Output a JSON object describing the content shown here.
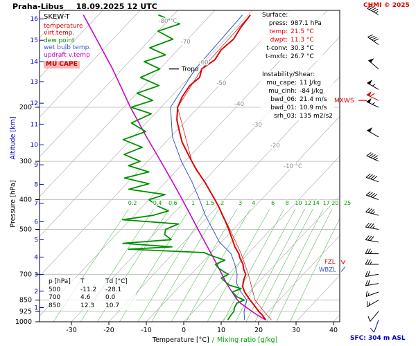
{
  "header": {
    "station": "Praha-Libus",
    "datetime": "18.09.2025 12 UTC",
    "copyright": "CHMI © 2025"
  },
  "legend": {
    "title": "SKEW-T",
    "items": [
      {
        "label": "temperature",
        "color": "#e00000"
      },
      {
        "label": "virt.temp.",
        "color": "#e00000"
      },
      {
        "label": "dew point",
        "color": "#009000"
      },
      {
        "label": "wet bulb temp.",
        "color": "#3355cc"
      },
      {
        "label": "updraft v.temp",
        "color": "#cc00cc"
      },
      {
        "label": "MU CAPE",
        "color": "#cc0000",
        "bg": "#f6b9b9"
      }
    ]
  },
  "surface_panel": {
    "title": "Surface:",
    "rows": [
      {
        "label": "press:",
        "value": "987.1 hPa"
      },
      {
        "label": "temp:",
        "value": "21.5 °C",
        "color": "#e00000"
      },
      {
        "label": "dwpt:",
        "value": "11.3 °C",
        "color": "#e00000"
      },
      {
        "label": "t-conv:",
        "value": "30.3 °C"
      },
      {
        "label": "t-mxfc:",
        "value": "26.7 °C"
      }
    ]
  },
  "instability_panel": {
    "title": "Instability/Shear:",
    "rows": [
      {
        "label": "mu_cape:",
        "value": "11 J/kg"
      },
      {
        "label": "mu_cinh:",
        "value": "-84 J/kg"
      },
      {
        "label": "bwd_06:",
        "value": "21.4 m/s"
      },
      {
        "label": "bwd_01:",
        "value": "10.9 m/s"
      },
      {
        "label": "srh_03:",
        "value": "135 m2/s2"
      }
    ]
  },
  "markers": {
    "tropo": "Tropo",
    "mxws": "MXWS",
    "fzl": "FZL",
    "wbzl": "WBZL",
    "sfc": "SFC: 304 m ASL"
  },
  "axes": {
    "left_primary": "Pressure [hPa]",
    "left_secondary": "Altitude [km]",
    "bottom_primary": "Temperature [°C]",
    "bottom_separator": "/",
    "bottom_secondary": "Mixing ratio [g/kg]"
  },
  "table": {
    "headers": [
      "p [hPa]",
      "T",
      "Td [°C]"
    ],
    "rows": [
      [
        "500",
        "-11.2",
        "-28.1"
      ],
      [
        "700",
        "4.6",
        "0.0"
      ],
      [
        "850",
        "12.3",
        "10.7"
      ]
    ]
  },
  "chart_data": {
    "type": "skew-t log-p sounding",
    "title": "Praha-Libus 18.09.2025 12 UTC",
    "colors": {
      "temperature": "#e00000",
      "dewpoint": "#009000",
      "wetbulb": "#3355cc",
      "virt_temp": "#dd2222",
      "parcel": "#cc00cc",
      "mixing_ratio": "#00a000",
      "grid": "#b4b4b4",
      "isotherm_label": "#8a8a8a",
      "altitude": "#0000cc",
      "wind": "#000000",
      "mxws": "#e00000",
      "surface_wind": "#0000cc",
      "brand": "#e00000"
    },
    "pressure_ticks": [
      200,
      300,
      400,
      500,
      700,
      850,
      925,
      1000
    ],
    "altitude_ticks": [
      {
        "km": 1,
        "p": 899
      },
      {
        "km": 2,
        "p": 795
      },
      {
        "km": 3,
        "p": 701
      },
      {
        "km": 4,
        "p": 616
      },
      {
        "km": 5,
        "p": 540
      },
      {
        "km": 6,
        "p": 472
      },
      {
        "km": 7,
        "p": 411
      },
      {
        "km": 8,
        "p": 357
      },
      {
        "km": 9,
        "p": 308
      },
      {
        "km": 10,
        "p": 265
      },
      {
        "km": 11,
        "p": 227
      },
      {
        "km": 12,
        "p": 194
      },
      {
        "km": 13,
        "p": 165
      },
      {
        "km": 14,
        "p": 142
      },
      {
        "km": 15,
        "p": 121
      },
      {
        "km": 16,
        "p": 103
      }
    ],
    "temp_ticks": [
      -30,
      -20,
      -10,
      0,
      10,
      20,
      30,
      40
    ],
    "isotherm_label_values": [
      -80,
      -70,
      -60,
      -50,
      -40,
      -30,
      -20,
      -10
    ],
    "mixing_ratio_lines": [
      0.2,
      0.4,
      0.6,
      1,
      1.5,
      2,
      3,
      4,
      6,
      8,
      10,
      12,
      14,
      17,
      20,
      25
    ],
    "series": {
      "temperature": [
        [
          987,
          21.5
        ],
        [
          950,
          19.2
        ],
        [
          925,
          17.4
        ],
        [
          900,
          15.8
        ],
        [
          850,
          12.3
        ],
        [
          820,
          10.2
        ],
        [
          800,
          8.8
        ],
        [
          770,
          7.0
        ],
        [
          740,
          5.8
        ],
        [
          700,
          4.6
        ],
        [
          670,
          2.5
        ],
        [
          650,
          1.4
        ],
        [
          620,
          -1.0
        ],
        [
          600,
          -2.4
        ],
        [
          570,
          -5.2
        ],
        [
          550,
          -6.8
        ],
        [
          520,
          -9.4
        ],
        [
          500,
          -11.2
        ],
        [
          470,
          -14.2
        ],
        [
          450,
          -16.4
        ],
        [
          420,
          -19.8
        ],
        [
          400,
          -22.4
        ],
        [
          370,
          -26.6
        ],
        [
          350,
          -29.6
        ],
        [
          320,
          -34.8
        ],
        [
          300,
          -38.2
        ],
        [
          280,
          -41.8
        ],
        [
          260,
          -45.6
        ],
        [
          240,
          -49.0
        ],
        [
          220,
          -52.6
        ],
        [
          200,
          -55.6
        ],
        [
          185,
          -57.0
        ],
        [
          170,
          -57.8
        ],
        [
          160,
          -57.2
        ],
        [
          150,
          -58.8
        ],
        [
          140,
          -57.6
        ],
        [
          130,
          -58.4
        ],
        [
          120,
          -57.8
        ],
        [
          110,
          -58.8
        ],
        [
          100,
          -59.4
        ]
      ],
      "dewpoint": [
        [
          987,
          11.3
        ],
        [
          960,
          11.0
        ],
        [
          925,
          10.8
        ],
        [
          900,
          10.0
        ],
        [
          870,
          9.5
        ],
        [
          850,
          10.7
        ],
        [
          830,
          8.0
        ],
        [
          800,
          5.5
        ],
        [
          780,
          7.0
        ],
        [
          760,
          3.0
        ],
        [
          740,
          1.0
        ],
        [
          720,
          -1.0
        ],
        [
          700,
          0.0
        ],
        [
          690,
          -1.5
        ],
        [
          670,
          -4.0
        ],
        [
          650,
          -6.0
        ],
        [
          630,
          -4.5
        ],
        [
          610,
          -9.0
        ],
        [
          595,
          -12.0
        ],
        [
          580,
          -33.0
        ],
        [
          570,
          -22.0
        ],
        [
          555,
          -36.0
        ],
        [
          540,
          -24.0
        ],
        [
          520,
          -27.0
        ],
        [
          500,
          -28.1
        ],
        [
          480,
          -26.0
        ],
        [
          465,
          -42.0
        ],
        [
          450,
          -35.0
        ],
        [
          435,
          -32.0
        ],
        [
          420,
          -36.0
        ],
        [
          400,
          -40.0
        ],
        [
          385,
          -37.0
        ],
        [
          370,
          -48.0
        ],
        [
          355,
          -44.0
        ],
        [
          340,
          -52.0
        ],
        [
          325,
          -47.0
        ],
        [
          310,
          -54.0
        ],
        [
          300,
          -52.0
        ],
        [
          285,
          -58.0
        ],
        [
          270,
          -55.0
        ],
        [
          255,
          -62.0
        ],
        [
          240,
          -58.0
        ],
        [
          225,
          -64.0
        ],
        [
          210,
          -61.0
        ],
        [
          200,
          -68.0
        ],
        [
          190,
          -64.0
        ],
        [
          180,
          -70.0
        ],
        [
          170,
          -66.0
        ],
        [
          160,
          -73.0
        ],
        [
          150,
          -70.0
        ],
        [
          142,
          -76.0
        ],
        [
          135,
          -72.0
        ],
        [
          128,
          -78.0
        ],
        [
          120,
          -74.0
        ],
        [
          113,
          -80.0
        ],
        [
          107,
          -76.0
        ],
        [
          100,
          -84.0
        ]
      ],
      "wetbulb": [
        [
          987,
          15.8
        ],
        [
          925,
          13.5
        ],
        [
          850,
          11.4
        ],
        [
          800,
          7.8
        ],
        [
          750,
          4.5
        ],
        [
          700,
          2.3
        ],
        [
          650,
          -0.8
        ],
        [
          600,
          -4.5
        ],
        [
          550,
          -10.5
        ],
        [
          500,
          -15.5
        ],
        [
          450,
          -21.0
        ],
        [
          400,
          -26.5
        ],
        [
          350,
          -33.0
        ],
        [
          300,
          -41.0
        ],
        [
          250,
          -49.5
        ],
        [
          200,
          -57.5
        ],
        [
          150,
          -60.5
        ],
        [
          100,
          -61.5
        ]
      ],
      "virt_temp": [
        [
          987,
          23.0
        ],
        [
          925,
          18.8
        ],
        [
          850,
          13.6
        ],
        [
          700,
          5.3
        ],
        [
          600,
          -1.8
        ],
        [
          500,
          -10.9
        ],
        [
          400,
          -22.3
        ],
        [
          300,
          -38.2
        ],
        [
          200,
          -55.6
        ],
        [
          150,
          -58.8
        ],
        [
          100,
          -59.4
        ]
      ],
      "parcel": [
        [
          987,
          21.5
        ],
        [
          950,
          17.9
        ],
        [
          925,
          15.6
        ],
        [
          900,
          13.3
        ],
        [
          870,
          10.5
        ],
        [
          850,
          8.9
        ],
        [
          800,
          5.4
        ],
        [
          750,
          1.8
        ],
        [
          700,
          -1.8
        ],
        [
          650,
          -5.6
        ],
        [
          600,
          -9.8
        ],
        [
          550,
          -14.4
        ],
        [
          500,
          -19.4
        ],
        [
          450,
          -24.9
        ],
        [
          400,
          -31.1
        ],
        [
          350,
          -38.2
        ],
        [
          300,
          -46.5
        ],
        [
          250,
          -56.4
        ],
        [
          200,
          -68.2
        ],
        [
          150,
          -82.6
        ],
        [
          100,
          -104.0
        ]
      ]
    },
    "wind_barbs": [
      {
        "p": 100,
        "kt": 45,
        "dir": 300
      },
      {
        "p": 125,
        "kt": 40,
        "dir": 305
      },
      {
        "p": 150,
        "kt": 50,
        "dir": 310
      },
      {
        "p": 175,
        "kt": 55,
        "dir": 300
      },
      {
        "p": 190,
        "kt": 60,
        "dir": 295,
        "color": "mxws"
      },
      {
        "p": 200,
        "kt": 55,
        "dir": 295
      },
      {
        "p": 250,
        "kt": 50,
        "dir": 300
      },
      {
        "p": 300,
        "kt": 45,
        "dir": 295
      },
      {
        "p": 350,
        "kt": 40,
        "dir": 290
      },
      {
        "p": 400,
        "kt": 40,
        "dir": 290
      },
      {
        "p": 450,
        "kt": 35,
        "dir": 285
      },
      {
        "p": 500,
        "kt": 35,
        "dir": 280
      },
      {
        "p": 550,
        "kt": 30,
        "dir": 280
      },
      {
        "p": 600,
        "kt": 25,
        "dir": 270
      },
      {
        "p": 650,
        "kt": 25,
        "dir": 270
      },
      {
        "p": 700,
        "kt": 20,
        "dir": 260
      },
      {
        "p": 750,
        "kt": 20,
        "dir": 260
      },
      {
        "p": 800,
        "kt": 15,
        "dir": 250
      },
      {
        "p": 850,
        "kt": 15,
        "dir": 240
      },
      {
        "p": 925,
        "kt": 10,
        "dir": 220
      },
      {
        "p": 987,
        "kt": 10,
        "dir": 200,
        "color": "surface_wind"
      }
    ],
    "markers_meta": {
      "tropo_p": 150,
      "mxws_p": 190,
      "fzl_p": 637,
      "wbzl_p": 676
    }
  }
}
